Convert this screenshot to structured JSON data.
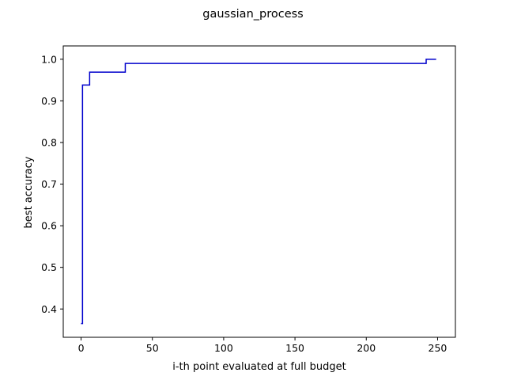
{
  "chart_data": {
    "type": "line",
    "title": "gaussian_process",
    "xlabel": "i-th point evaluated at full budget",
    "ylabel": "best accuracy",
    "xlim": [
      -12.5,
      262.5
    ],
    "ylim": [
      0.332,
      1.032
    ],
    "xticks": [
      0,
      50,
      100,
      150,
      200,
      250
    ],
    "xtick_labels": [
      "0",
      "50",
      "100",
      "150",
      "200",
      "250"
    ],
    "yticks": [
      0.4,
      0.5,
      0.6,
      0.7,
      0.8,
      0.9,
      1.0
    ],
    "ytick_labels": [
      "0.4",
      "0.5",
      "0.6",
      "0.7",
      "0.8",
      "0.9",
      "1.0"
    ],
    "grid": false,
    "series": [
      {
        "color": "#0000cc",
        "style": "steps-post",
        "x": [
          0,
          1,
          2,
          3,
          4,
          5,
          6,
          30,
          31,
          241,
          242,
          249
        ],
        "y": [
          0.365,
          0.938,
          0.938,
          0.938,
          0.938,
          0.938,
          0.969,
          0.969,
          0.99,
          0.99,
          1.0,
          1.0
        ]
      }
    ]
  }
}
